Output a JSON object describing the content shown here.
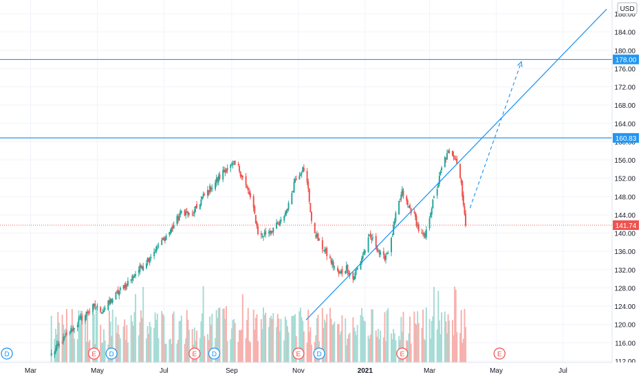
{
  "chart_data": {
    "type": "candlestick",
    "title": "",
    "currency": "USD",
    "y_axis": {
      "ylim": [
        112,
        188
      ],
      "ticks": [
        112,
        116,
        120,
        124,
        128,
        132,
        136,
        140,
        144,
        148,
        152,
        156,
        160,
        164,
        168,
        172,
        176,
        180,
        184,
        188
      ],
      "tick_labels": [
        "112.00",
        "116.00",
        "120.00",
        "124.00",
        "128.00",
        "132.00",
        "136.00",
        "140.00",
        "144.00",
        "148.00",
        "152.00",
        "156.00",
        "160.00",
        "164.00",
        "168.00",
        "172.00",
        "176.00",
        "180.00",
        "184.00",
        "188.00"
      ],
      "side": "right",
      "scale": "linear"
    },
    "x_axis": {
      "xlim": [
        "2020-02-02",
        "2021-08-15"
      ],
      "tick_dates": [
        "2020-03-01",
        "2020-05-01",
        "2020-07-01",
        "2020-09-01",
        "2020-11-01",
        "2021-01-01",
        "2021-03-01",
        "2021-05-01",
        "2021-07-01"
      ],
      "tick_labels": [
        "Mar",
        "May",
        "Jul",
        "Sep",
        "Nov",
        "2021",
        "Mar",
        "May",
        "Jul"
      ],
      "bold_ticks": [
        "2021"
      ]
    },
    "grid": true,
    "colors": {
      "up": "#26a69a",
      "down": "#ef5350",
      "line": "#2196f3",
      "up_volume": "#a6dcd5",
      "down_volume": "#f7b1ae",
      "price_badge": "#ef5350",
      "level_badge": "#2196f3"
    },
    "price_waypoints": [
      {
        "date": "2020-03-20",
        "price": 113.5
      },
      {
        "date": "2020-04-01",
        "price": 117.0
      },
      {
        "date": "2020-04-15",
        "price": 121.0
      },
      {
        "date": "2020-04-28",
        "price": 124.0
      },
      {
        "date": "2020-05-06",
        "price": 123.0
      },
      {
        "date": "2020-05-18",
        "price": 126.5
      },
      {
        "date": "2020-06-01",
        "price": 130.0
      },
      {
        "date": "2020-06-15",
        "price": 134.0
      },
      {
        "date": "2020-06-29",
        "price": 138.0
      },
      {
        "date": "2020-07-08",
        "price": 141.0
      },
      {
        "date": "2020-07-18",
        "price": 145.0
      },
      {
        "date": "2020-07-26",
        "price": 143.5
      },
      {
        "date": "2020-08-06",
        "price": 148.0
      },
      {
        "date": "2020-08-20",
        "price": 152.0
      },
      {
        "date": "2020-08-28",
        "price": 154.5
      },
      {
        "date": "2020-09-06",
        "price": 155.0
      },
      {
        "date": "2020-09-12",
        "price": 151.5
      },
      {
        "date": "2020-09-17",
        "price": 148.5
      },
      {
        "date": "2020-09-22",
        "price": 144.0
      },
      {
        "date": "2020-09-26",
        "price": 139.0
      },
      {
        "date": "2020-10-05",
        "price": 140.5
      },
      {
        "date": "2020-10-15",
        "price": 142.0
      },
      {
        "date": "2020-10-23",
        "price": 146.0
      },
      {
        "date": "2020-10-29",
        "price": 152.0
      },
      {
        "date": "2020-11-05",
        "price": 154.0
      },
      {
        "date": "2020-11-10",
        "price": 150.0
      },
      {
        "date": "2020-11-13",
        "price": 142.0
      },
      {
        "date": "2020-11-20",
        "price": 138.0
      },
      {
        "date": "2020-11-28",
        "price": 135.0
      },
      {
        "date": "2020-12-08",
        "price": 131.0
      },
      {
        "date": "2020-12-15",
        "price": 132.5
      },
      {
        "date": "2020-12-21",
        "price": 130.0
      },
      {
        "date": "2020-12-28",
        "price": 134.0
      },
      {
        "date": "2021-01-05",
        "price": 139.0
      },
      {
        "date": "2021-01-10",
        "price": 138.0
      },
      {
        "date": "2021-01-17",
        "price": 134.0
      },
      {
        "date": "2021-01-24",
        "price": 137.0
      },
      {
        "date": "2021-01-30",
        "price": 145.0
      },
      {
        "date": "2021-02-04",
        "price": 149.0
      },
      {
        "date": "2021-02-09",
        "price": 146.0
      },
      {
        "date": "2021-02-15",
        "price": 144.0
      },
      {
        "date": "2021-02-20",
        "price": 140.0
      },
      {
        "date": "2021-02-25",
        "price": 139.0
      },
      {
        "date": "2021-03-02",
        "price": 145.0
      },
      {
        "date": "2021-03-08",
        "price": 150.0
      },
      {
        "date": "2021-03-14",
        "price": 156.0
      },
      {
        "date": "2021-03-20",
        "price": 158.0
      },
      {
        "date": "2021-03-25",
        "price": 156.5
      },
      {
        "date": "2021-03-30",
        "price": 151.0
      },
      {
        "date": "2021-04-03",
        "price": 141.7
      }
    ],
    "horizontal_levels": [
      {
        "price": 178.0,
        "label": "178.00"
      },
      {
        "price": 160.83,
        "label": "160.83"
      }
    ],
    "last_price": {
      "price": 141.74,
      "label": "141.74"
    },
    "trend_line": {
      "from": {
        "date": "2020-11-08",
        "price": 121.0
      },
      "to": {
        "date": "2021-08-10",
        "price": 189.0
      }
    },
    "projection_arrow": {
      "from": {
        "date": "2021-04-07",
        "price": 145.5
      },
      "to": {
        "date": "2021-05-24",
        "price": 177.5
      }
    },
    "events": [
      {
        "date": "2020-02-05",
        "type": "dividend",
        "label": "D",
        "color": "#2196f3"
      },
      {
        "date": "2020-04-28",
        "type": "earnings",
        "label": "E",
        "color": "#ef5350"
      },
      {
        "date": "2020-05-14",
        "type": "dividend",
        "label": "D",
        "color": "#2196f3"
      },
      {
        "date": "2020-07-29",
        "type": "earnings",
        "label": "E",
        "color": "#ef5350"
      },
      {
        "date": "2020-08-16",
        "type": "dividend",
        "label": "D",
        "color": "#2196f3"
      },
      {
        "date": "2020-11-01",
        "type": "earnings",
        "label": "E",
        "color": "#ef5350"
      },
      {
        "date": "2020-11-20",
        "type": "dividend",
        "label": "D",
        "color": "#2196f3"
      },
      {
        "date": "2021-02-04",
        "type": "earnings",
        "label": "E",
        "color": "#ef5350"
      },
      {
        "date": "2021-05-04",
        "type": "earnings",
        "label": "E",
        "color": "#ef5350"
      }
    ]
  }
}
